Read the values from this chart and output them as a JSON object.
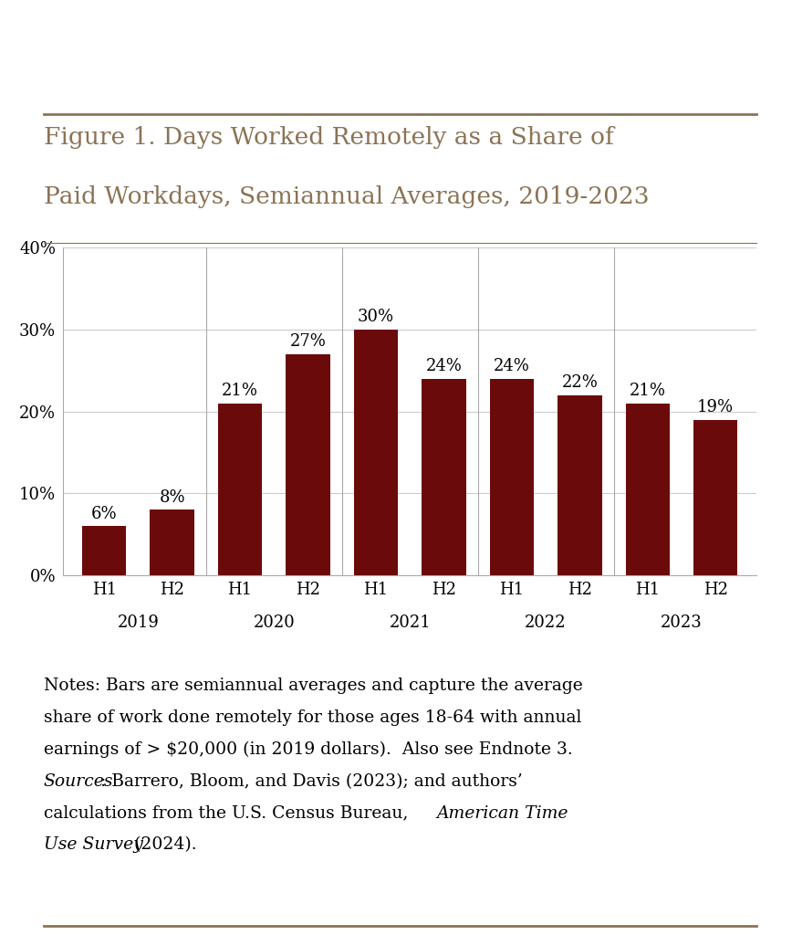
{
  "title_line1": "Figure 1. Days Worked Remotely as a Share of",
  "title_line2": "Paid Workdays, Semiannual Averages, 2019-2023",
  "title_color": "#8B7355",
  "bar_color": "#6B0A0A",
  "background_color": "#FFFFFF",
  "values": [
    6,
    8,
    21,
    27,
    30,
    24,
    24,
    22,
    21,
    19
  ],
  "labels": [
    "H1",
    "H2",
    "H1",
    "H2",
    "H1",
    "H2",
    "H1",
    "H2",
    "H1",
    "H2"
  ],
  "year_labels": [
    "2019",
    "2020",
    "2021",
    "2022",
    "2023"
  ],
  "year_positions": [
    0.5,
    2.5,
    4.5,
    6.5,
    8.5
  ],
  "ylim": [
    0,
    40
  ],
  "yticks": [
    0,
    10,
    20,
    30,
    40
  ],
  "ytick_labels": [
    "0%",
    "10%",
    "20%",
    "30%",
    "40%"
  ],
  "grid_color": "#CCCCCC",
  "separator_color": "#8B7355",
  "axis_line_color": "#AAAAAA",
  "label_fontsize": 13,
  "year_fontsize": 13,
  "value_fontsize": 13,
  "title_fontsize": 19,
  "notes_fontsize": 13.5,
  "bar_width": 0.65,
  "notes_line1": "Notes: Bars are semiannual averages and capture the average",
  "notes_line2": "share of work done remotely for those ages 18-64 with annual",
  "notes_line3": "earnings of > $20,000 (in 2019 dollars).  Also see Endnote 3.",
  "sources_italic": "Sources",
  "sources_rest": ": Barrero, Bloom, and Davis (2023); and authors’",
  "sources_line2": "calculations from the U.S. Census Bureau, ",
  "sources_ital2": "American Time",
  "sources_line3_ital": "Use Survey",
  "sources_line3_end": " (2024)."
}
